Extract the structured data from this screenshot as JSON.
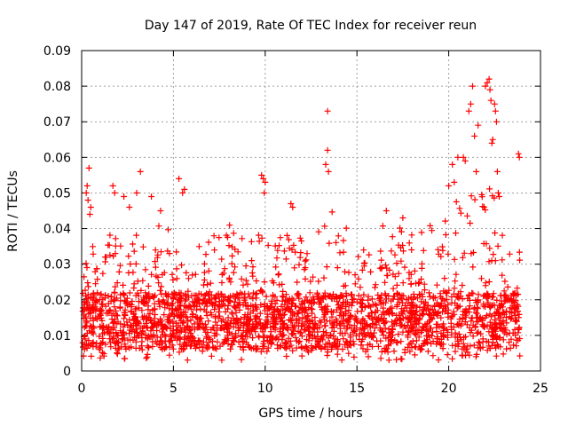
{
  "chart_data": {
    "type": "scatter",
    "title": "Day 147 of 2019, Rate Of TEC Index for receiver reun",
    "xlabel": "GPS time / hours",
    "ylabel": "ROTI / TECUs",
    "xlim": [
      0,
      25
    ],
    "ylim": [
      0,
      0.09
    ],
    "x_ticks": [
      "0",
      "5",
      "10",
      "15",
      "20",
      "25"
    ],
    "y_ticks": [
      "0",
      "0.01",
      "0.02",
      "0.03",
      "0.04",
      "0.05",
      "0.06",
      "0.07",
      "0.08",
      "0.09"
    ],
    "grid": true,
    "marker": "+",
    "series": [
      {
        "name": "ROTI",
        "color": "#ff0000",
        "points": [
          [
            0.25,
            0.05
          ],
          [
            0.3,
            0.052
          ],
          [
            0.35,
            0.048
          ],
          [
            0.4,
            0.057
          ],
          [
            0.45,
            0.044
          ],
          [
            0.5,
            0.046
          ],
          [
            1.7,
            0.052
          ],
          [
            1.8,
            0.05
          ],
          [
            2.3,
            0.049
          ],
          [
            2.6,
            0.046
          ],
          [
            3.2,
            0.056
          ],
          [
            3.0,
            0.05
          ],
          [
            3.8,
            0.049
          ],
          [
            4.3,
            0.045
          ],
          [
            5.3,
            0.054
          ],
          [
            5.5,
            0.05
          ],
          [
            5.6,
            0.051
          ],
          [
            9.8,
            0.055
          ],
          [
            9.9,
            0.054
          ],
          [
            10.0,
            0.053
          ],
          [
            9.95,
            0.05
          ],
          [
            11.4,
            0.047
          ],
          [
            11.5,
            0.046
          ],
          [
            13.3,
            0.058
          ],
          [
            13.4,
            0.062
          ],
          [
            13.45,
            0.056
          ],
          [
            13.4,
            0.073
          ],
          [
            16.6,
            0.045
          ],
          [
            17.5,
            0.043
          ],
          [
            20.0,
            0.052
          ],
          [
            20.2,
            0.058
          ],
          [
            20.3,
            0.053
          ],
          [
            20.5,
            0.06
          ],
          [
            20.8,
            0.06
          ],
          [
            20.9,
            0.059
          ],
          [
            21.1,
            0.073
          ],
          [
            21.2,
            0.075
          ],
          [
            21.3,
            0.08
          ],
          [
            21.4,
            0.066
          ],
          [
            21.6,
            0.069
          ],
          [
            21.5,
            0.056
          ],
          [
            22.0,
            0.08
          ],
          [
            22.1,
            0.081
          ],
          [
            22.2,
            0.082
          ],
          [
            22.25,
            0.079
          ],
          [
            22.3,
            0.076
          ],
          [
            22.4,
            0.065
          ],
          [
            22.35,
            0.064
          ],
          [
            22.5,
            0.075
          ],
          [
            22.55,
            0.073
          ],
          [
            22.6,
            0.07
          ],
          [
            22.65,
            0.056
          ],
          [
            22.7,
            0.05
          ],
          [
            22.75,
            0.049
          ],
          [
            23.8,
            0.061
          ],
          [
            23.85,
            0.06
          ]
        ]
      }
    ]
  }
}
